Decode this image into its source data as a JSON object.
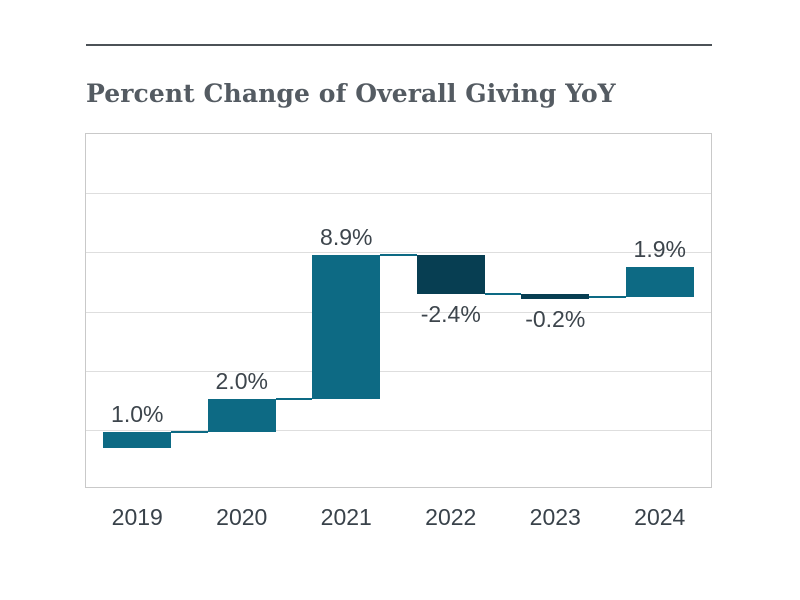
{
  "page": {
    "title": "Percent Change of Overall Giving YoY"
  },
  "chart_data": {
    "type": "bar",
    "subtype": "waterfall",
    "title": "Percent Change of Overall Giving YoY",
    "categories": [
      "2019",
      "2020",
      "2021",
      "2022",
      "2023",
      "2024"
    ],
    "values": [
      1.0,
      2.0,
      8.9,
      -2.4,
      -0.2,
      1.9
    ],
    "value_labels": [
      "1.0%",
      "2.0%",
      "8.9%",
      "-2.4%",
      "-0.2%",
      "1.9%"
    ],
    "cumulative": [
      1.0,
      3.0,
      11.9,
      9.5,
      9.3,
      11.2
    ],
    "xlabel": "",
    "ylabel": "",
    "ylim": [
      -2.5,
      19.5
    ],
    "grid": "horizontal",
    "legend": "none",
    "colors": {
      "positive_bar": "#0d6a84",
      "negative_bar": "#073e52",
      "connector": "#0d6a84",
      "gridline": "#dedede",
      "plot_border": "#c9c9c9",
      "value_text": "#3d454c",
      "axis_text": "#39424a",
      "title_text": "#545b62",
      "rule": "#4c5257",
      "background": "#ffffff"
    }
  }
}
